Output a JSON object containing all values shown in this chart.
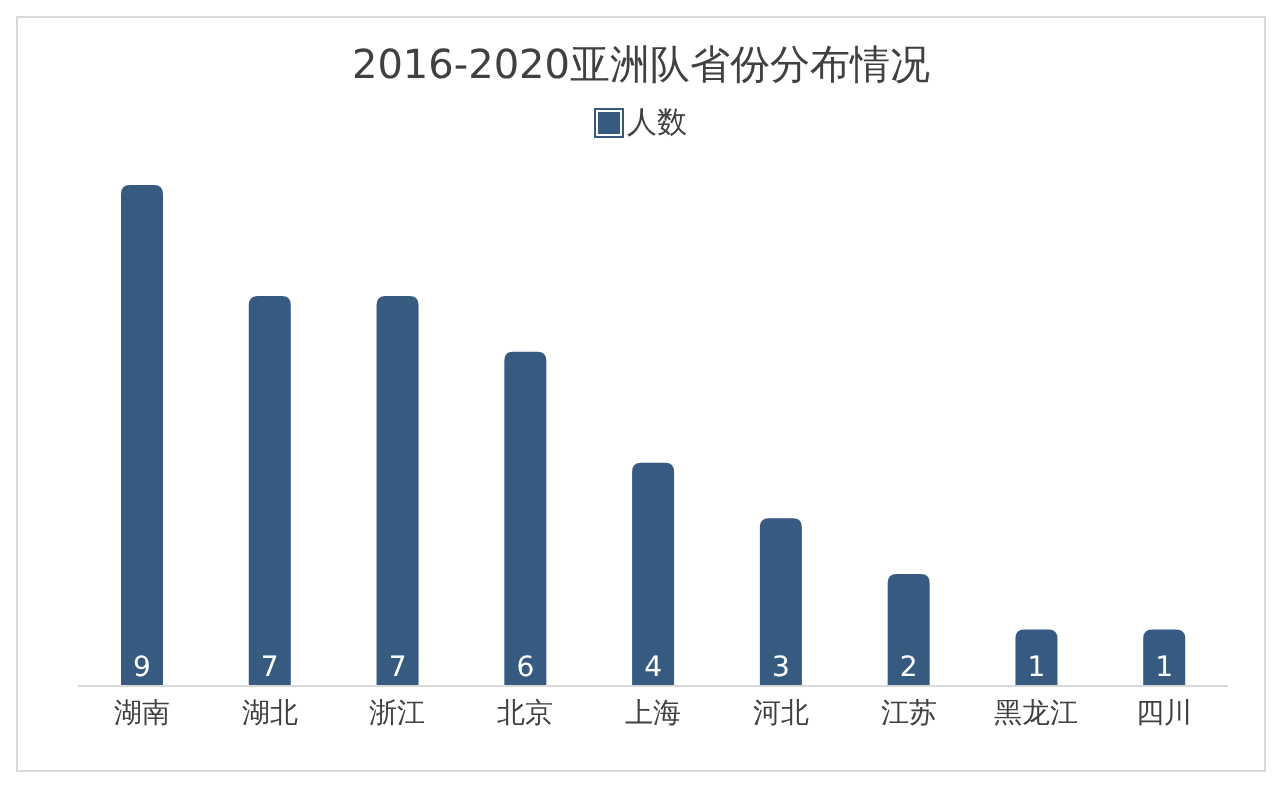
{
  "chart_data": {
    "type": "bar",
    "title": "2016-2020亚洲队省份分布情况",
    "categories": [
      "湖南",
      "湖北",
      "浙江",
      "北京",
      "上海",
      "河北",
      "江苏",
      "黑龙江",
      "四川"
    ],
    "series": [
      {
        "name": "人数",
        "color": "#365a80",
        "values": [
          9,
          7,
          7,
          6,
          4,
          3,
          2,
          1,
          1
        ]
      }
    ],
    "data_labels": true,
    "legend": "top",
    "grid": false
  }
}
